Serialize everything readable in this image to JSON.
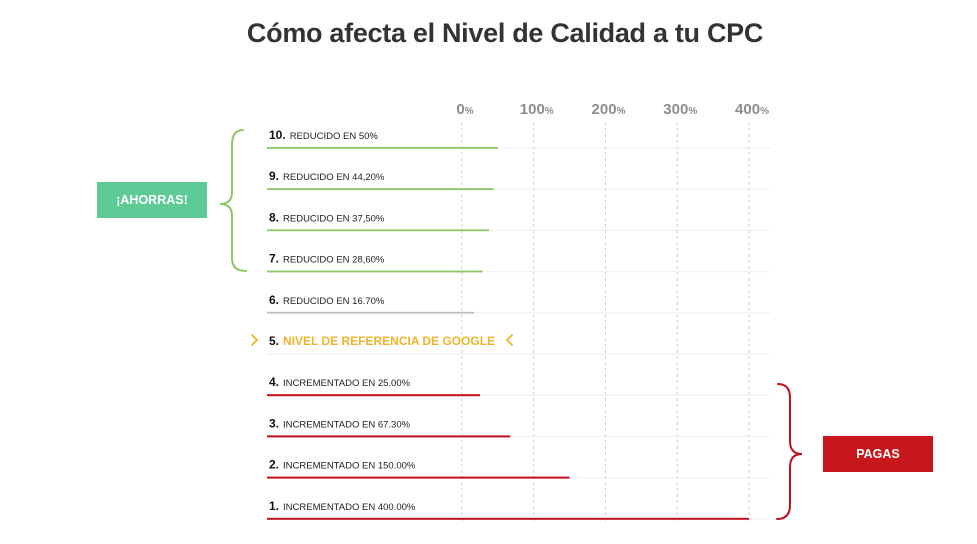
{
  "title": "Cómo afecta el Nivel de Calidad a tu CPC",
  "badges": {
    "save": {
      "label": "¡AHORRAS!",
      "color": "#5ccb96"
    },
    "pay": {
      "label": "PAGAS",
      "color": "#c8161d"
    }
  },
  "chart_data": {
    "type": "bar",
    "orientation": "horizontal",
    "title": "Cómo afecta el Nivel de Calidad a tu CPC",
    "xlim": [
      0,
      400
    ],
    "x_ticks": [
      {
        "value": 0,
        "num": "0",
        "unit": "%"
      },
      {
        "value": 100,
        "num": "100",
        "unit": "%"
      },
      {
        "value": 200,
        "num": "200",
        "unit": "%"
      },
      {
        "value": 300,
        "num": "300",
        "unit": "%"
      },
      {
        "value": 400,
        "num": "400",
        "unit": "%"
      }
    ],
    "grid": true,
    "rows": [
      {
        "num": "10.",
        "text": "REDUCIDO EN 50%",
        "value": 50,
        "kind": "save"
      },
      {
        "num": "9.",
        "text": "REDUCIDO EN 44,20%",
        "value": 44.2,
        "kind": "save"
      },
      {
        "num": "8.",
        "text": "REDUCIDO EN 37,50%",
        "value": 37.5,
        "kind": "save"
      },
      {
        "num": "7.",
        "text": "REDUCIDO EN 28,60%",
        "value": 28.6,
        "kind": "save"
      },
      {
        "num": "6.",
        "text": "REDUCIDO EN 16.70%",
        "value": 16.7,
        "kind": "neutral"
      },
      {
        "num": "5.",
        "text": "NIVEL DE REFERENCIA DE GOOGLE",
        "value": null,
        "kind": "reference"
      },
      {
        "num": "4.",
        "text": "INCREMENTADO EN 25.00%",
        "value": 25,
        "kind": "pay"
      },
      {
        "num": "3.",
        "text": "INCREMENTADO EN 67.30%",
        "value": 67.3,
        "kind": "pay"
      },
      {
        "num": "2.",
        "text": "INCREMENTADO EN 150.00%",
        "value": 150,
        "kind": "pay"
      },
      {
        "num": "1.",
        "text": "INCREMENTADO EN 400.00%",
        "value": 400,
        "kind": "pay"
      }
    ],
    "colors": {
      "save": "#8cc665",
      "neutral": "#bdbdbd",
      "reference": "#f0b42c",
      "pay": "#c0101b",
      "grid": "#cfcfcf",
      "rule": "#eeeeee"
    }
  }
}
